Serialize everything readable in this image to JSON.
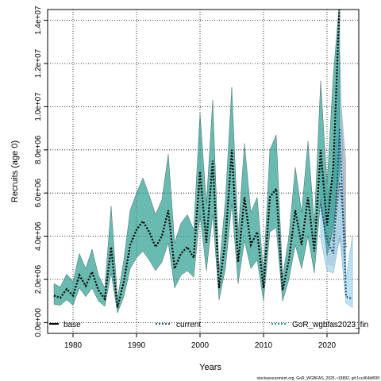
{
  "chart_data": {
    "type": "line",
    "title": "",
    "xlabel": "Years",
    "ylabel": "Recruits (age 0)",
    "xlim": [
      1976,
      2025
    ],
    "ylim": [
      -500000,
      14500000
    ],
    "x_ticks": [
      1980,
      1990,
      2000,
      2010,
      2020
    ],
    "x_tick_labels": [
      "1980",
      "1990",
      "2000",
      "2010",
      "2020"
    ],
    "y_ticks": [
      0,
      2000000,
      4000000,
      6000000,
      8000000,
      10000000,
      12000000,
      14000000
    ],
    "y_tick_labels": [
      "0.0e+00",
      "2.0e+06",
      "4.0e+06",
      "6.0e+06",
      "8.0e+06",
      "1.0e+07",
      "1.2e+07",
      "1.4e+07"
    ],
    "grid": true,
    "legend_position": "bottom",
    "legend": [
      {
        "label": "base",
        "color": "#000000",
        "style": "solid"
      },
      {
        "label": "current",
        "color": "#1f5f8b",
        "style": "dotted"
      },
      {
        "label": "GoR_wgbfas2023_fin",
        "color": "#2a9d8f",
        "style": "dotted"
      }
    ],
    "footnote": "stockassessment.org, GoR_WGBFAS_2025, r18892, git:1cc464b806f",
    "colors": {
      "band_teal": "#2a9d8f",
      "band_gray": "#8a8a8a",
      "band_light_blue": "#a8d8ee",
      "line_teal": "#0d4d4d"
    },
    "series": [
      {
        "name": "GoR_wgbfas2023_fin",
        "x": [
          1977,
          1978,
          1979,
          1980,
          1981,
          1982,
          1983,
          1984,
          1985,
          1986,
          1987,
          1988,
          1989,
          1990,
          1991,
          1992,
          1993,
          1994,
          1995,
          1996,
          1997,
          1998,
          1999,
          2000,
          2001,
          2002,
          2003,
          2004,
          2005,
          2006,
          2007,
          2008,
          2009,
          2010,
          2011,
          2012,
          2013,
          2014,
          2015,
          2016,
          2017,
          2018,
          2019,
          2020,
          2021,
          2022
        ],
        "y": [
          1250000,
          1150000,
          1550000,
          1250000,
          2200000,
          1700000,
          2350000,
          1500000,
          1100000,
          3500000,
          700000,
          1900000,
          3600000,
          4300000,
          4700000,
          4200000,
          3500000,
          4000000,
          5200000,
          2500000,
          3200000,
          3500000,
          3000000,
          7000000,
          3700000,
          7500000,
          1600000,
          3800000,
          8000000,
          2800000,
          5800000,
          3600000,
          4200000,
          1600000,
          5800000,
          6200000,
          1500000,
          2900000,
          5200000,
          3600000,
          5800000,
          3300000,
          8000000,
          4500000,
          7200000,
          15000000
        ],
        "lower": [
          850000,
          800000,
          1050000,
          800000,
          1600000,
          1200000,
          1600000,
          1000000,
          750000,
          2300000,
          450000,
          1200000,
          2500000,
          3000000,
          3300000,
          2900000,
          2400000,
          2800000,
          3700000,
          1600000,
          2200000,
          2400000,
          2100000,
          5000000,
          2400000,
          5000000,
          1050000,
          2500000,
          5500000,
          1800000,
          3800000,
          2500000,
          2900000,
          1000000,
          4200000,
          4400000,
          1000000,
          2000000,
          3600000,
          2500000,
          4000000,
          2300000,
          5700000,
          3100000,
          4400000,
          7000000
        ],
        "upper": [
          1800000,
          1650000,
          2250000,
          1900000,
          3200000,
          2500000,
          3400000,
          2200000,
          1600000,
          5400000,
          1100000,
          2900000,
          5200000,
          6000000,
          6700000,
          5900000,
          5000000,
          5700000,
          7800000,
          3700000,
          4600000,
          5000000,
          4300000,
          9700000,
          5500000,
          10300000,
          2400000,
          5700000,
          10900000,
          4100000,
          8300000,
          5100000,
          5800000,
          2300000,
          8000000,
          8700000,
          2100000,
          4000000,
          7200000,
          5100000,
          8400000,
          4600000,
          11200000,
          6400000,
          11500000,
          15000000
        ]
      },
      {
        "name": "current",
        "x": [
          2019,
          2020,
          2021,
          2022,
          2023,
          2024
        ],
        "y": [
          5500000,
          3800000,
          3200000,
          9000000,
          1200000,
          1100000
        ],
        "lower": [
          3900000,
          2400000,
          2300000,
          4000000,
          900000,
          700000
        ],
        "upper": [
          7700000,
          6000000,
          4800000,
          12500000,
          2000000,
          4000000
        ]
      },
      {
        "name": "base",
        "x": [
          2020,
          2021,
          2022,
          2023
        ],
        "y": [
          4000000,
          3800000,
          6500000,
          3500000
        ],
        "lower": [
          2700000,
          2600000,
          3800000,
          2200000
        ],
        "upper": [
          6000000,
          6800000,
          11000000,
          7500000
        ]
      }
    ]
  }
}
